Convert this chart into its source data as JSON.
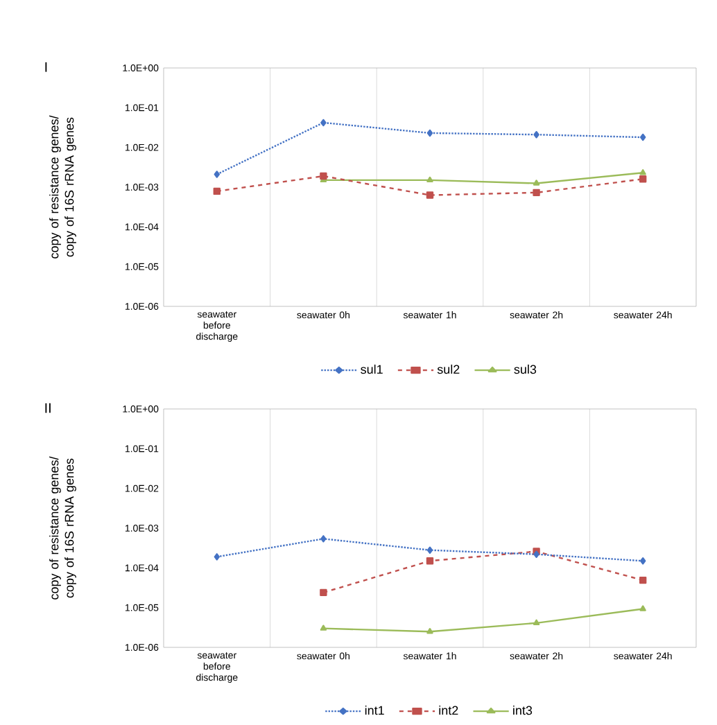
{
  "chart_data": [
    {
      "type": "line",
      "title": "I",
      "ylabel": "copy of resistance genes/ copy of 16S rRNA genes",
      "log": "y",
      "grid": "x",
      "legend": "bottom",
      "categories": [
        "seawater before discharge",
        "seawater 0h",
        "seawater 1h",
        "seawater 2h",
        "seawater 24h"
      ],
      "ylim": [
        1e-06,
        1
      ],
      "yticks": [
        {
          "value": 1e-06,
          "label": "1.0E-06"
        },
        {
          "value": 1e-05,
          "label": "1.0E-05"
        },
        {
          "value": 0.0001,
          "label": "1.0E-04"
        },
        {
          "value": 0.001,
          "label": "1.0E-03"
        },
        {
          "value": 0.01,
          "label": "1.0E-02"
        },
        {
          "value": 0.1,
          "label": "1.0E-01"
        },
        {
          "value": 1,
          "label": "1.0E+00"
        }
      ],
      "series": [
        {
          "name": "sul1",
          "color": "#4472c4",
          "marker": "diamond",
          "line_style": "dotted",
          "values": [
            0.0021,
            0.042,
            0.023,
            0.021,
            0.018
          ]
        },
        {
          "name": "sul2",
          "color": "#c0504d",
          "marker": "square",
          "line_style": "dashed",
          "values": [
            0.00079,
            0.0019,
            0.00063,
            0.00073,
            0.0016
          ]
        },
        {
          "name": "sul3",
          "color": "#9bbb59",
          "marker": "triangle",
          "line_style": "solid",
          "values": [
            null,
            0.0015,
            0.0015,
            0.00125,
            0.0023
          ]
        }
      ]
    },
    {
      "type": "line",
      "title": "II",
      "ylabel": "copy of resistance genes/ copy of 16S rRNA genes",
      "log": "y",
      "grid": "x",
      "legend": "bottom",
      "categories": [
        "seawater before discharge",
        "seawater 0h",
        "seawater 1h",
        "seawater 2h",
        "seawater 24h"
      ],
      "ylim": [
        1e-06,
        1
      ],
      "yticks": [
        {
          "value": 1e-06,
          "label": "1.0E-06"
        },
        {
          "value": 1e-05,
          "label": "1.0E-05"
        },
        {
          "value": 0.0001,
          "label": "1.0E-04"
        },
        {
          "value": 0.001,
          "label": "1.0E-03"
        },
        {
          "value": 0.01,
          "label": "1.0E-02"
        },
        {
          "value": 0.1,
          "label": "1.0E-01"
        },
        {
          "value": 1,
          "label": "1.0E+00"
        }
      ],
      "series": [
        {
          "name": "int1",
          "color": "#4472c4",
          "marker": "diamond",
          "line_style": "dotted",
          "values": [
            0.00019,
            0.00054,
            0.00028,
            0.00022,
            0.00015
          ]
        },
        {
          "name": "int2",
          "color": "#c0504d",
          "marker": "square",
          "line_style": "dashed",
          "values": [
            null,
            2.4e-05,
            0.00015,
            0.00026,
            4.9e-05
          ]
        },
        {
          "name": "int3",
          "color": "#9bbb59",
          "marker": "triangle",
          "line_style": "solid",
          "values": [
            null,
            3e-06,
            2.5e-06,
            4.1e-06,
            9.3e-06
          ]
        }
      ]
    }
  ]
}
